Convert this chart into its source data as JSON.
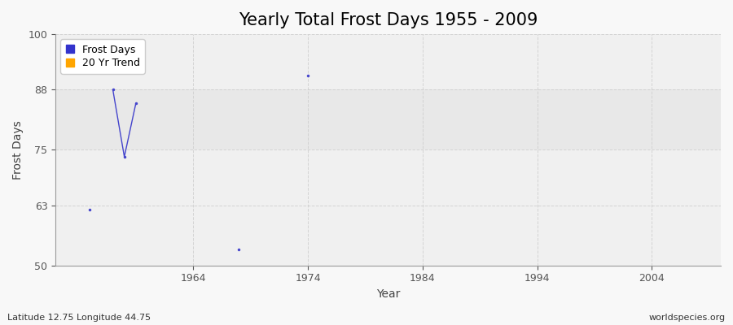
{
  "title": "Yearly Total Frost Days 1955 - 2009",
  "xlabel": "Year",
  "ylabel": "Frost Days",
  "xlim": [
    1952,
    2010
  ],
  "ylim": [
    50,
    100
  ],
  "yticks": [
    50,
    63,
    75,
    88,
    100
  ],
  "xticks": [
    1964,
    1974,
    1984,
    1994,
    2004
  ],
  "connected_years": [
    1957,
    1958,
    1959
  ],
  "connected_values": [
    88,
    73.5,
    85
  ],
  "isolated_points": [
    [
      1955,
      62
    ],
    [
      1968,
      53.5
    ],
    [
      1974,
      91
    ]
  ],
  "line_color": "#4444cc",
  "dot_size": 2.5,
  "legend_frost_color": "#3333cc",
  "legend_trend_color": "#FFA500",
  "bg_color_outer": "#f8f8f8",
  "bg_color_plot": "#f0f0f0",
  "band_color": "#e8e8e8",
  "band_ymin": 75,
  "band_ymax": 88,
  "subtitle": "Latitude 12.75 Longitude 44.75",
  "watermark": "worldspecies.org",
  "title_fontsize": 15,
  "label_fontsize": 10,
  "tick_fontsize": 9,
  "grid_color": "#cccccc",
  "grid_alpha": 0.8
}
